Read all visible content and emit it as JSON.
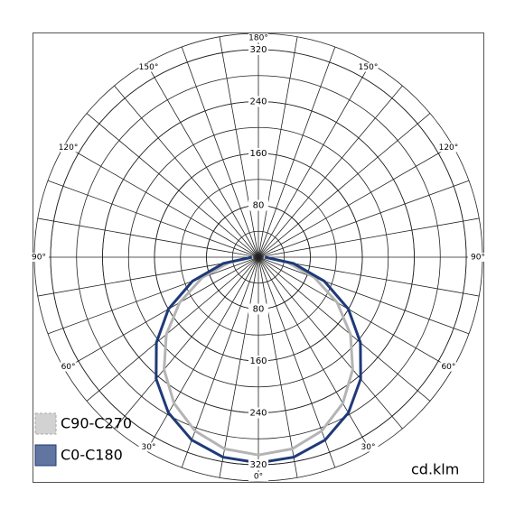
{
  "chart_data": {
    "type": "polar",
    "unit": "cd.klm",
    "x": [
      0,
      10,
      20,
      30,
      40,
      50,
      60,
      70,
      80,
      90
    ],
    "series": [
      {
        "name": "C90-C270",
        "color": "#b4b4b4",
        "values": [
          305,
          300,
          285,
          260,
          226,
          185,
          140,
          92,
          45,
          8
        ]
      },
      {
        "name": "C0-C180",
        "color": "#1f3a78",
        "values": [
          317,
          313,
          300,
          277,
          245,
          205,
          160,
          108,
          55,
          10
        ]
      }
    ],
    "rlim": [
      0,
      345
    ],
    "rticks": [
      80,
      160,
      240,
      320
    ],
    "rminor_step": 40,
    "angle_ticks": [
      {
        "value": 0,
        "label": "0°"
      },
      {
        "value": 30,
        "label": "30°"
      },
      {
        "value": 60,
        "label": "60°"
      },
      {
        "value": 90,
        "label": "90°"
      },
      {
        "value": 120,
        "label": "120°"
      },
      {
        "value": 150,
        "label": "150°"
      },
      {
        "value": 180,
        "label": "180°"
      }
    ],
    "angle_grid_step": 10,
    "legend": "lower left"
  }
}
